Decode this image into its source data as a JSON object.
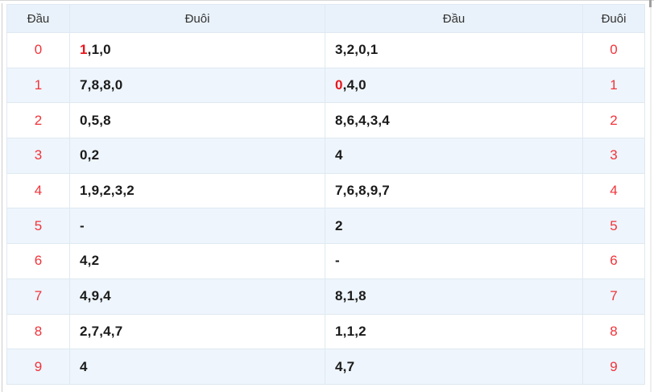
{
  "colors": {
    "header_bg": "#e9f2fa",
    "stripe_bg": "#eef5fc",
    "border": "#dfe9f1",
    "red": "#f2333a",
    "highlight_red": "#e8161d",
    "text": "#1a1a1a"
  },
  "table": {
    "headers": [
      "Đầu",
      "Đuôi",
      "Đầu",
      "Đuôi"
    ],
    "rows": [
      {
        "dau_left": "0",
        "duoi_left": {
          "pre": "1",
          "rest": ",1,0"
        },
        "dau_right": {
          "pre": "",
          "rest": "3,2,0,1"
        },
        "duoi_right": "0"
      },
      {
        "dau_left": "1",
        "duoi_left": {
          "pre": "",
          "rest": "7,8,8,0"
        },
        "dau_right": {
          "pre": "0",
          "rest": ",4,0"
        },
        "duoi_right": "1"
      },
      {
        "dau_left": "2",
        "duoi_left": {
          "pre": "",
          "rest": "0,5,8"
        },
        "dau_right": {
          "pre": "",
          "rest": "8,6,4,3,4"
        },
        "duoi_right": "2"
      },
      {
        "dau_left": "3",
        "duoi_left": {
          "pre": "",
          "rest": "0,2"
        },
        "dau_right": {
          "pre": "",
          "rest": "4"
        },
        "duoi_right": "3"
      },
      {
        "dau_left": "4",
        "duoi_left": {
          "pre": "",
          "rest": "1,9,2,3,2"
        },
        "dau_right": {
          "pre": "",
          "rest": "7,6,8,9,7"
        },
        "duoi_right": "4"
      },
      {
        "dau_left": "5",
        "duoi_left": {
          "pre": "",
          "rest": "-"
        },
        "dau_right": {
          "pre": "",
          "rest": "2"
        },
        "duoi_right": "5"
      },
      {
        "dau_left": "6",
        "duoi_left": {
          "pre": "",
          "rest": "4,2"
        },
        "dau_right": {
          "pre": "",
          "rest": "-"
        },
        "duoi_right": "6"
      },
      {
        "dau_left": "7",
        "duoi_left": {
          "pre": "",
          "rest": "4,9,4"
        },
        "dau_right": {
          "pre": "",
          "rest": "8,1,8"
        },
        "duoi_right": "7"
      },
      {
        "dau_left": "8",
        "duoi_left": {
          "pre": "",
          "rest": "2,7,4,7"
        },
        "dau_right": {
          "pre": "",
          "rest": "1,1,2"
        },
        "duoi_right": "8"
      },
      {
        "dau_left": "9",
        "duoi_left": {
          "pre": "",
          "rest": "4"
        },
        "dau_right": {
          "pre": "",
          "rest": "4,7"
        },
        "duoi_right": "9"
      }
    ]
  }
}
